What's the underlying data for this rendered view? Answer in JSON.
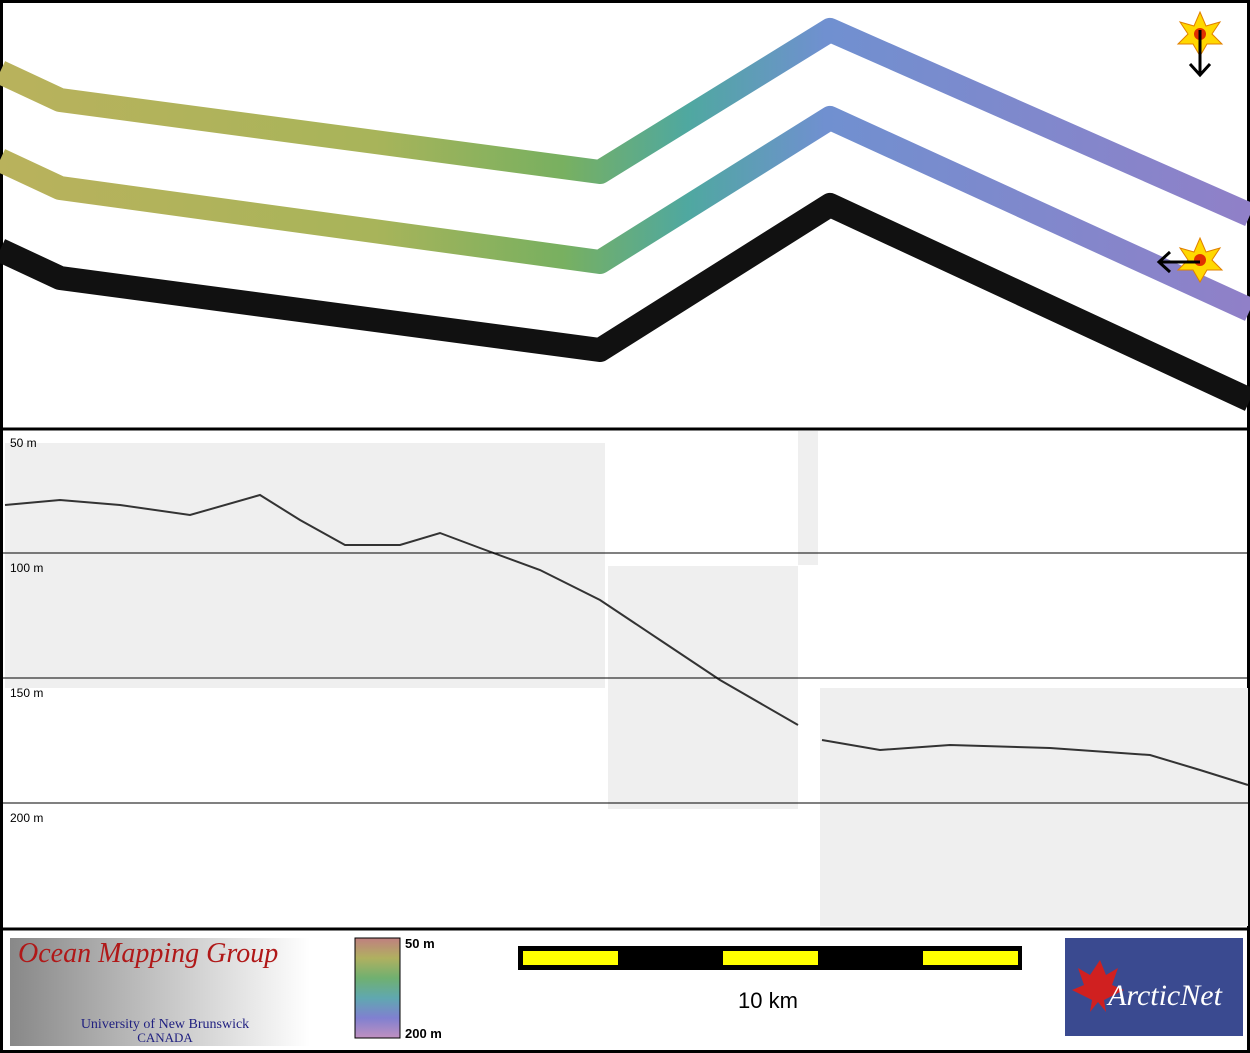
{
  "depth_labels": [
    "50 m",
    "100 m",
    "150 m",
    "200 m"
  ],
  "logo": {
    "title": "Ocean Mapping Group",
    "line1": "University of New Brunswick",
    "line2": "CANADA"
  },
  "colorbar": {
    "top": "50 m",
    "bottom": "200 m"
  },
  "scale_bar": {
    "label": "10 km"
  },
  "partner": {
    "name": "ArcticNet"
  }
}
